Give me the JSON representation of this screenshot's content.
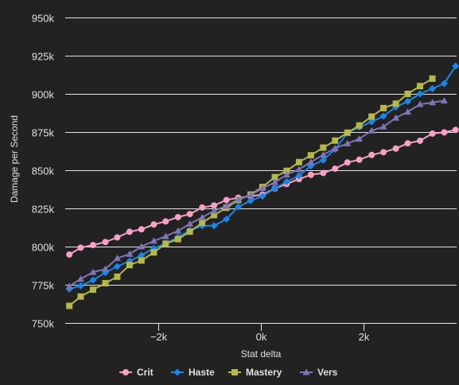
{
  "chart_data": {
    "type": "line",
    "title": "",
    "xlabel": "Stat delta",
    "ylabel": "Damage per Second",
    "xlim": [
      -3800,
      3800
    ],
    "ylim": [
      750000,
      950000
    ],
    "grid": true,
    "legend_position": "bottom-center",
    "x_ticks": [
      -2000,
      0,
      2000
    ],
    "x_tick_labels": [
      "−2k",
      "0k",
      "2k"
    ],
    "y_ticks": [
      750000,
      775000,
      800000,
      825000,
      850000,
      875000,
      900000,
      925000,
      950000
    ],
    "y_tick_labels": [
      "750k",
      "775k",
      "800k",
      "825k",
      "850k",
      "875k",
      "900k",
      "925k",
      "950k"
    ],
    "series": [
      {
        "name": "Crit",
        "color": "#f7a1c4",
        "marker": "circle",
        "points": [
          [
            -3720,
            794800
          ],
          [
            -3500,
            799300
          ],
          [
            -3260,
            801000
          ],
          [
            -3020,
            803000
          ],
          [
            -2790,
            806000
          ],
          [
            -2550,
            809700
          ],
          [
            -2320,
            811300
          ],
          [
            -2080,
            814500
          ],
          [
            -1850,
            816500
          ],
          [
            -1610,
            819300
          ],
          [
            -1380,
            821300
          ],
          [
            -1140,
            825600
          ],
          [
            -910,
            826900
          ],
          [
            -670,
            830500
          ],
          [
            -440,
            832000
          ],
          [
            -200,
            833000
          ],
          [
            30,
            834000
          ],
          [
            270,
            838000
          ],
          [
            500,
            841000
          ],
          [
            740,
            844200
          ],
          [
            970,
            847000
          ],
          [
            1210,
            848200
          ],
          [
            1440,
            851000
          ],
          [
            1680,
            855100
          ],
          [
            1910,
            856900
          ],
          [
            2150,
            860000
          ],
          [
            2380,
            861800
          ],
          [
            2620,
            864200
          ],
          [
            2850,
            867600
          ],
          [
            3090,
            869300
          ],
          [
            3330,
            874000
          ],
          [
            3560,
            874800
          ],
          [
            3780,
            876400
          ]
        ]
      },
      {
        "name": "Haste",
        "color": "#1a86e8",
        "marker": "diamond",
        "points": [
          [
            -3720,
            772200
          ],
          [
            -3500,
            774300
          ],
          [
            -3260,
            778000
          ],
          [
            -3020,
            783000
          ],
          [
            -2790,
            787000
          ],
          [
            -2550,
            790500
          ],
          [
            -2320,
            794300
          ],
          [
            -2080,
            798800
          ],
          [
            -1850,
            802000
          ],
          [
            -1610,
            806200
          ],
          [
            -1380,
            810600
          ],
          [
            -1140,
            813600
          ],
          [
            -910,
            813600
          ],
          [
            -670,
            818000
          ],
          [
            -440,
            826000
          ],
          [
            -200,
            830000
          ],
          [
            30,
            833000
          ],
          [
            270,
            838000
          ],
          [
            500,
            842500
          ],
          [
            740,
            846400
          ],
          [
            970,
            852800
          ],
          [
            1210,
            856600
          ],
          [
            1440,
            863700
          ],
          [
            1680,
            874400
          ],
          [
            1910,
            878200
          ],
          [
            2150,
            881700
          ],
          [
            2380,
            885400
          ],
          [
            2620,
            891400
          ],
          [
            2850,
            895000
          ],
          [
            3090,
            900000
          ],
          [
            3330,
            903400
          ],
          [
            3560,
            906800
          ],
          [
            3780,
            918200
          ]
        ]
      },
      {
        "name": "Mastery",
        "color": "#b5b84a",
        "marker": "square",
        "points": [
          [
            -3720,
            761200
          ],
          [
            -3500,
            767300
          ],
          [
            -3260,
            771800
          ],
          [
            -3020,
            776000
          ],
          [
            -2790,
            780300
          ],
          [
            -2550,
            787900
          ],
          [
            -2320,
            790900
          ],
          [
            -2080,
            796200
          ],
          [
            -1850,
            801900
          ],
          [
            -1610,
            804900
          ],
          [
            -1380,
            809800
          ],
          [
            -1140,
            815600
          ],
          [
            -910,
            820600
          ],
          [
            -670,
            825400
          ],
          [
            -440,
            830500
          ],
          [
            -200,
            834100
          ],
          [
            30,
            839000
          ],
          [
            270,
            845500
          ],
          [
            500,
            849600
          ],
          [
            740,
            855300
          ],
          [
            970,
            859800
          ],
          [
            1210,
            864800
          ],
          [
            1440,
            869400
          ],
          [
            1680,
            874600
          ],
          [
            1910,
            879300
          ],
          [
            2150,
            885100
          ],
          [
            2380,
            890700
          ],
          [
            2620,
            893600
          ],
          [
            2850,
            900000
          ],
          [
            3090,
            905100
          ],
          [
            3330,
            910000
          ]
        ]
      },
      {
        "name": "Vers",
        "color": "#8074b8",
        "marker": "triangle",
        "points": [
          [
            -3720,
            774000
          ],
          [
            -3500,
            778800
          ],
          [
            -3260,
            783300
          ],
          [
            -3020,
            785300
          ],
          [
            -2790,
            792400
          ],
          [
            -2550,
            795100
          ],
          [
            -2320,
            800000
          ],
          [
            -2080,
            803700
          ],
          [
            -1850,
            806700
          ],
          [
            -1610,
            810300
          ],
          [
            -1380,
            814900
          ],
          [
            -1140,
            819100
          ],
          [
            -910,
            823500
          ],
          [
            -670,
            826600
          ],
          [
            -440,
            831100
          ],
          [
            -200,
            833800
          ],
          [
            30,
            838200
          ],
          [
            270,
            842100
          ],
          [
            500,
            847100
          ],
          [
            740,
            850600
          ],
          [
            970,
            855300
          ],
          [
            1210,
            860100
          ],
          [
            1440,
            864300
          ],
          [
            1680,
            867500
          ],
          [
            1910,
            870500
          ],
          [
            2150,
            875900
          ],
          [
            2380,
            878500
          ],
          [
            2620,
            884300
          ],
          [
            2850,
            888200
          ],
          [
            3090,
            893200
          ],
          [
            3330,
            894400
          ],
          [
            3560,
            895500
          ]
        ]
      }
    ]
  }
}
